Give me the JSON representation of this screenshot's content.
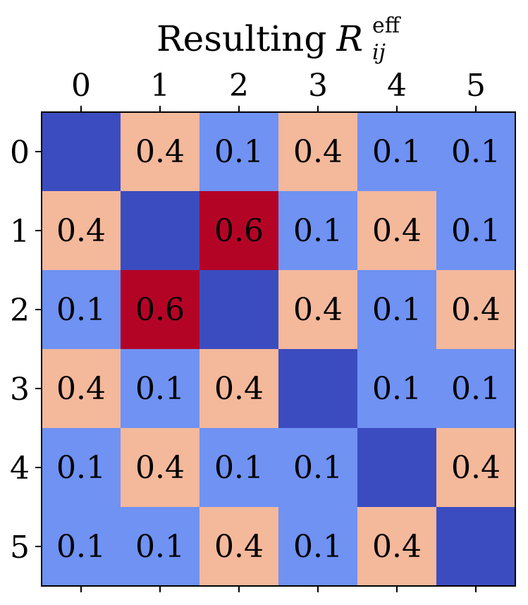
{
  "chart_data": {
    "type": "heatmap",
    "title": {
      "prefix": "Resulting",
      "symbol": "R",
      "superscript": "eff",
      "subscript": "ij"
    },
    "x_ticks": [
      "0",
      "1",
      "2",
      "3",
      "4",
      "5"
    ],
    "y_ticks": [
      "0",
      "1",
      "2",
      "3",
      "4",
      "5"
    ],
    "x_tick_position": "top",
    "values": [
      [
        null,
        0.4,
        0.1,
        0.4,
        0.1,
        0.1
      ],
      [
        0.4,
        null,
        0.6,
        0.1,
        0.4,
        0.1
      ],
      [
        0.1,
        0.6,
        null,
        0.4,
        0.1,
        0.4
      ],
      [
        0.4,
        0.1,
        0.4,
        null,
        0.1,
        0.1
      ],
      [
        0.1,
        0.4,
        0.1,
        0.1,
        null,
        0.4
      ],
      [
        0.1,
        0.1,
        0.4,
        0.1,
        0.4,
        null
      ]
    ],
    "colormap": "coolwarm",
    "colors": {
      "diagonal": "#3b4cc0",
      "0.1": "#6f92f3",
      "0.4": "#f4b89b",
      "0.6": "#b40426"
    },
    "diagonal_labels": false
  }
}
